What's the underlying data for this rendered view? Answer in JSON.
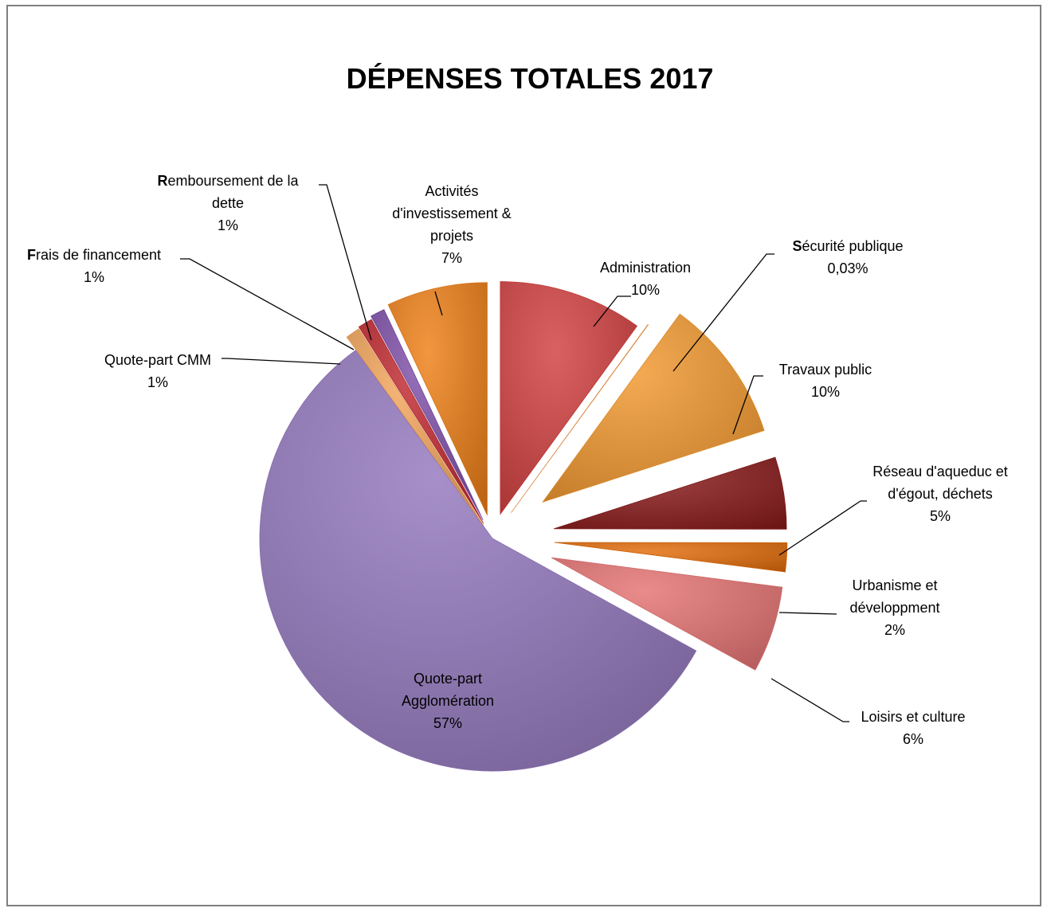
{
  "chart_data": {
    "type": "pie",
    "title": "DÉPENSES TOTALES 2017",
    "exploded": true,
    "slices": [
      {
        "label_lines": [
          "Administration"
        ],
        "label_bold_first_char": false,
        "value_label": "10%",
        "value": 10,
        "color": "#d23e3e"
      },
      {
        "label_lines": [
          "Sécurité publique"
        ],
        "label_bold_first_char": true,
        "value_label": "0,03%",
        "value": 0.03,
        "color": "#f2994a"
      },
      {
        "label_lines": [
          "Travaux public"
        ],
        "label_bold_first_char": false,
        "value_label": "10%",
        "value": 10,
        "color": "#f3982e"
      },
      {
        "label_lines": [
          "Réseau d'aqueduc et",
          "d'égout,  déchets"
        ],
        "label_bold_first_char": false,
        "value_label": "5%",
        "value": 5,
        "color": "#8a1a1a"
      },
      {
        "label_lines": [
          "Urbanisme et",
          "développment"
        ],
        "label_bold_first_char": false,
        "value_label": "2%",
        "value": 2,
        "color": "#e36c09"
      },
      {
        "label_lines": [
          "Loisirs et culture"
        ],
        "label_bold_first_char": false,
        "value_label": "6%",
        "value": 6,
        "color": "#e57272"
      },
      {
        "label_lines": [
          "Quote-part",
          "Agglomération"
        ],
        "label_bold_first_char": false,
        "value_label": "57%",
        "value": 57,
        "color": "#9478be"
      },
      {
        "label_lines": [
          "Quote-part  CMM"
        ],
        "label_bold_first_char": false,
        "value_label": "1%",
        "value": 1,
        "color": "#f4a55a"
      },
      {
        "label_lines": [
          "Frais de financement"
        ],
        "label_bold_first_char": true,
        "value_label": "1%",
        "value": 1,
        "color": "#c0282e"
      },
      {
        "label_lines": [
          "Remboursement  de la",
          "dette"
        ],
        "label_bold_first_char": true,
        "value_label": "1%",
        "value": 1,
        "color": "#7e4ea8"
      },
      {
        "label_lines": [
          "Activités",
          "d'investissement &",
          "projets"
        ],
        "label_bold_first_char": false,
        "value_label": "7%",
        "value": 7,
        "color": "#ef7f16"
      }
    ]
  }
}
